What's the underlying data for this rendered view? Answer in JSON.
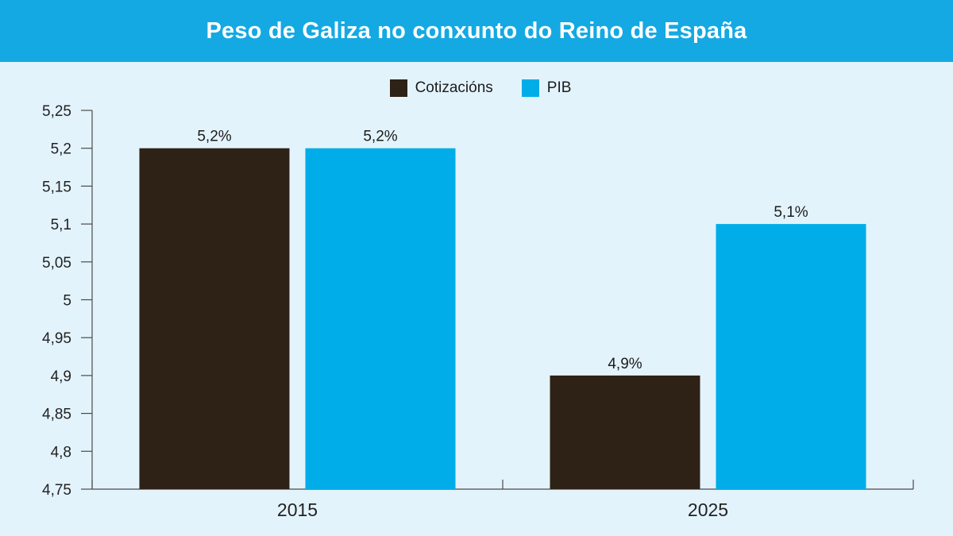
{
  "title": "Peso de Galiza no conxunto do Reino de España",
  "colors": {
    "header_bg": "#14a9e3",
    "background": "#e3f3fc",
    "cotizacions": "#2e2116",
    "pib": "#00ade9"
  },
  "chart_data": {
    "type": "bar",
    "title": "Peso de Galiza no conxunto do Reino de España",
    "categories": [
      "2015",
      "2025"
    ],
    "series": [
      {
        "name": "Cotizacións",
        "values": [
          5.2,
          4.9
        ],
        "labels": [
          "5,2%",
          "4,9%"
        ],
        "color": "#2e2116"
      },
      {
        "name": "PIB",
        "values": [
          5.2,
          5.1
        ],
        "labels": [
          "5,2%",
          "5,1%"
        ],
        "color": "#00ade9"
      }
    ],
    "ylim": [
      4.75,
      5.25
    ],
    "yticks": [
      4.75,
      4.8,
      4.85,
      4.9,
      4.95,
      5,
      5.05,
      5.1,
      5.15,
      5.2,
      5.25
    ],
    "ytick_labels": [
      "4,75",
      "4,8",
      "4,85",
      "4,9",
      "4,95",
      "5",
      "5,05",
      "5,1",
      "5,15",
      "5,2",
      "5,25"
    ],
    "legend_position": "top-center",
    "grid": false
  }
}
